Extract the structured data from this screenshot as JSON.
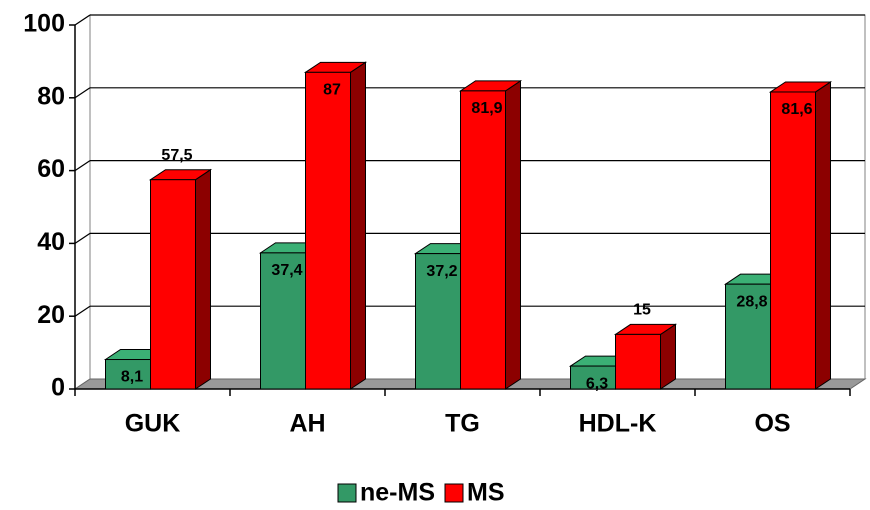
{
  "chart_data": {
    "type": "bar3d",
    "categories": [
      "GUK",
      "AH",
      "TG",
      "HDL-K",
      "OS"
    ],
    "series": [
      {
        "name": "ne-MS",
        "color": "#339966",
        "values": [
          8.1,
          37.4,
          37.2,
          6.3,
          28.8
        ],
        "value_labels": [
          "8,1",
          "37,4",
          "37,2",
          "6,3",
          "28,8"
        ]
      },
      {
        "name": "MS",
        "color": "#ff0000",
        "values": [
          57.5,
          87,
          81.9,
          15,
          81.6
        ],
        "value_labels": [
          "57,5",
          "87",
          "81,9",
          "15",
          "81,6"
        ]
      }
    ],
    "ylim": [
      0,
      100
    ],
    "yticks": [
      0,
      20,
      40,
      60,
      80,
      100
    ],
    "grid": true,
    "legend": "bottom"
  }
}
